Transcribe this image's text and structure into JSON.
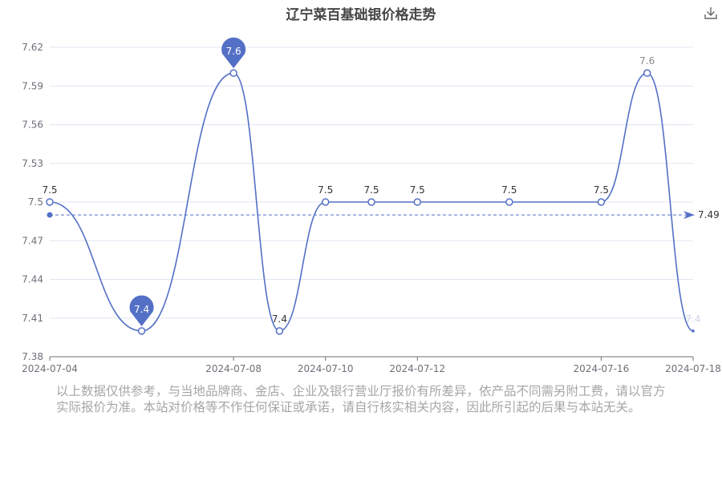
{
  "chart_data": {
    "type": "line",
    "title": "辽宁菜百基础银价格走势",
    "xlabel": "",
    "ylabel": "",
    "x": [
      "2024-07-04",
      "2024-07-06",
      "2024-07-08",
      "2024-07-09",
      "2024-07-10",
      "2024-07-11",
      "2024-07-12",
      "2024-07-14",
      "2024-07-16",
      "2024-07-17",
      "2024-07-18"
    ],
    "x_ticks": [
      "2024-07-04",
      "2024-07-08",
      "2024-07-10",
      "2024-07-12",
      "2024-07-16",
      "2024-07-18"
    ],
    "series": [
      {
        "values": [
          7.5,
          7.4,
          7.6,
          7.4,
          7.5,
          7.5,
          7.5,
          7.5,
          7.5,
          7.6,
          7.4
        ],
        "labels": [
          "7.5",
          "7.4",
          "7.6",
          "7.4",
          "7.5",
          "7.5",
          "7.5",
          "7.5",
          "7.5",
          "7.6",
          "7.4"
        ]
      }
    ],
    "ylim": [
      7.38,
      7.62
    ],
    "yticks": [
      "7.38",
      "7.41",
      "7.44",
      "7.47",
      "7.5",
      "7.53",
      "7.56",
      "7.59",
      "7.62"
    ],
    "max_marker": {
      "index": 2,
      "label": "7.6"
    },
    "min_marker": {
      "index": 1,
      "label": "7.4"
    },
    "average_line": {
      "value": 7.49,
      "label": "7.49"
    },
    "grid": true,
    "legend": "none",
    "colors": {
      "line": "#5470c6",
      "grid": "#e0e6f1",
      "axis": "#6e7079"
    }
  },
  "toolbar": {
    "download_icon": "download-icon"
  },
  "disclaimer": "以上数据仅供参考，与当地品牌商、金店、企业及银行营业厅报价有所差异，依产品不同需另附工费，请以官方实际报价为准。本站对价格等不作任何保证或承诺，请自行核实相关内容，因此所引起的后果与本站无关。"
}
